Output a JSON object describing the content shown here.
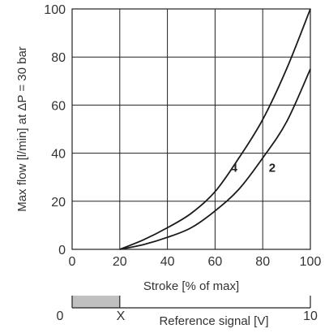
{
  "chart_data": {
    "type": "line",
    "xlabel": "Stroke [% of max]",
    "ylabel": "Max flow [l/min] at ΔP = 30 bar",
    "xlim": [
      0,
      100
    ],
    "ylim": [
      0,
      100
    ],
    "x_ticks": [
      "0",
      "20",
      "40",
      "60",
      "80",
      "100"
    ],
    "y_ticks": [
      "0",
      "20",
      "40",
      "60",
      "80",
      "100"
    ],
    "grid": true,
    "series": [
      {
        "name": "4",
        "x": [
          20,
          30,
          40,
          50,
          60,
          70,
          80,
          90,
          100
        ],
        "y": [
          0,
          4,
          9,
          15,
          24,
          38,
          54,
          75,
          100
        ]
      },
      {
        "name": "2",
        "x": [
          20,
          30,
          40,
          50,
          60,
          70,
          80,
          90,
          100
        ],
        "y": [
          0,
          2,
          5,
          9,
          16,
          25,
          38,
          53,
          75
        ]
      }
    ],
    "reference_signal": {
      "label": "Reference signal [V]",
      "start_label": "0",
      "marker_label": "X",
      "end_label": "10",
      "shaded_fraction": 0.2,
      "shade_color": "#c0c0c0"
    }
  }
}
